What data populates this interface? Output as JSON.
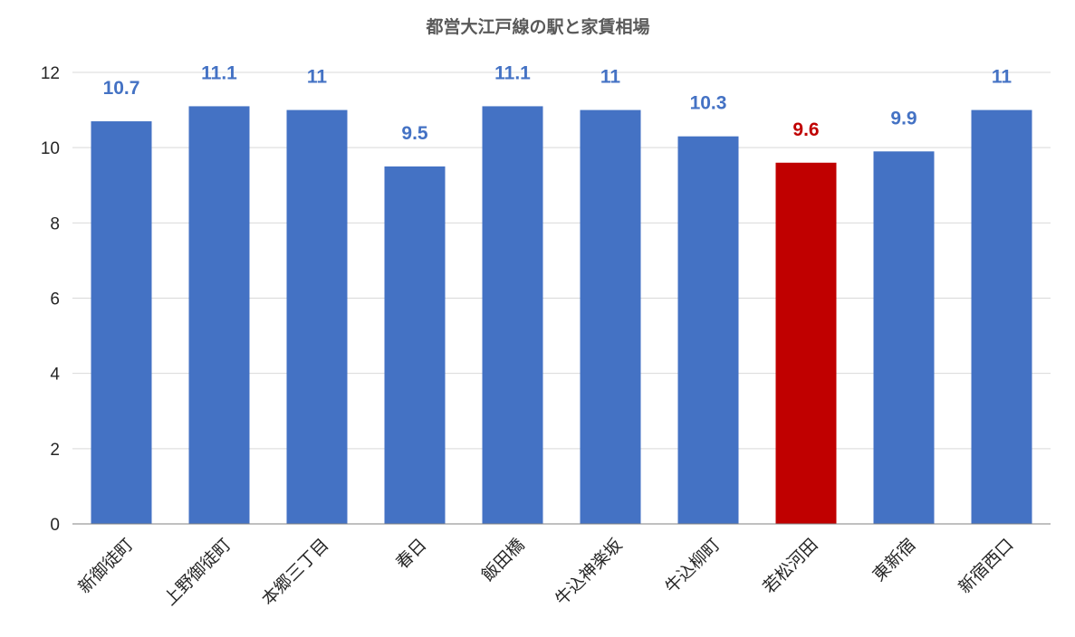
{
  "chart_data": {
    "type": "bar",
    "title": "都営大江戸線の駅と家賃相場",
    "categories": [
      "新御徒町",
      "上野御徒町",
      "本郷三丁目",
      "春日",
      "飯田橋",
      "牛込神楽坂",
      "牛込柳町",
      "若松河田",
      "東新宿",
      "新宿西口"
    ],
    "values": [
      10.7,
      11.1,
      11,
      9.5,
      11.1,
      11,
      10.3,
      9.6,
      9.9,
      11
    ],
    "data_labels": [
      "10.7",
      "11.1",
      "11",
      "9.5",
      "11.1",
      "11",
      "10.3",
      "9.6",
      "9.9",
      "11"
    ],
    "highlight_index": 7,
    "y_ticks": [
      "0",
      "2",
      "4",
      "6",
      "8",
      "10",
      "12"
    ],
    "ylim": [
      0,
      12
    ],
    "grid": true,
    "legend": "none",
    "colors": {
      "bar": "#4472C4",
      "highlight": "#C00000",
      "label": "#4472C4",
      "highlight_label": "#C00000",
      "grid": "#D9D9D9",
      "axis": "#808080"
    }
  }
}
